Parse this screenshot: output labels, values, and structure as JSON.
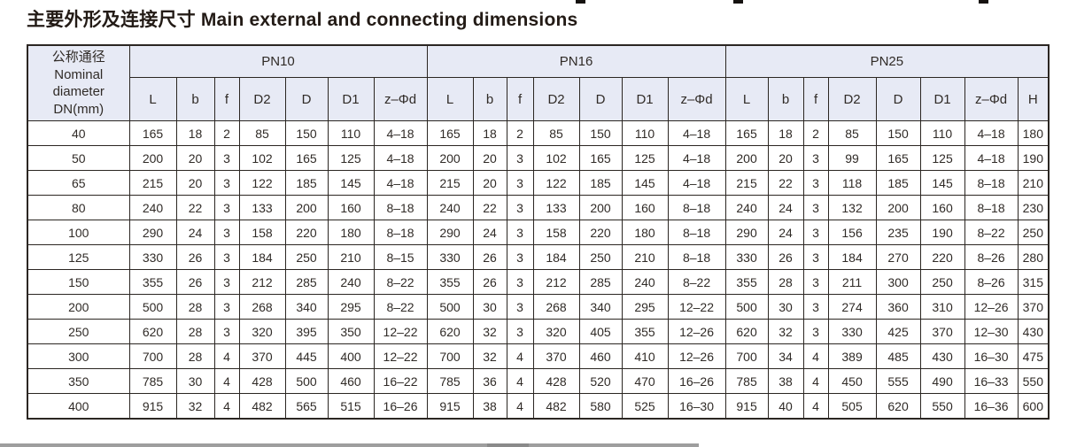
{
  "title": "主要外形及连接尺寸 Main external and connecting dimensions",
  "colors": {
    "header_bg": "#e7eaf5",
    "border": "#2b2622",
    "text": "#302b27",
    "bottom_bar": "#9e9e9e"
  },
  "header": {
    "dn_lines": [
      "公称通径",
      "Nominal",
      "diameter",
      "DN(mm)"
    ],
    "groups": [
      {
        "label": "PN10",
        "columns": [
          "L",
          "b",
          "f",
          "D2",
          "D",
          "D1",
          "z–Φd"
        ]
      },
      {
        "label": "PN16",
        "columns": [
          "L",
          "b",
          "f",
          "D2",
          "D",
          "D1",
          "z–Φd"
        ]
      },
      {
        "label": "PN25",
        "columns": [
          "L",
          "b",
          "f",
          "D2",
          "D",
          "D1",
          "z–Φd",
          "H"
        ]
      }
    ]
  },
  "rows": [
    {
      "dn": "40",
      "pn10": [
        "165",
        "18",
        "2",
        "85",
        "150",
        "110",
        "4–18"
      ],
      "pn16": [
        "165",
        "18",
        "2",
        "85",
        "150",
        "110",
        "4–18"
      ],
      "pn25": [
        "165",
        "18",
        "2",
        "85",
        "150",
        "110",
        "4–18",
        "180"
      ]
    },
    {
      "dn": "50",
      "pn10": [
        "200",
        "20",
        "3",
        "102",
        "165",
        "125",
        "4–18"
      ],
      "pn16": [
        "200",
        "20",
        "3",
        "102",
        "165",
        "125",
        "4–18"
      ],
      "pn25": [
        "200",
        "20",
        "3",
        "99",
        "165",
        "125",
        "4–18",
        "190"
      ]
    },
    {
      "dn": "65",
      "pn10": [
        "215",
        "20",
        "3",
        "122",
        "185",
        "145",
        "4–18"
      ],
      "pn16": [
        "215",
        "20",
        "3",
        "122",
        "185",
        "145",
        "4–18"
      ],
      "pn25": [
        "215",
        "22",
        "3",
        "118",
        "185",
        "145",
        "8–18",
        "210"
      ]
    },
    {
      "dn": "80",
      "pn10": [
        "240",
        "22",
        "3",
        "133",
        "200",
        "160",
        "8–18"
      ],
      "pn16": [
        "240",
        "22",
        "3",
        "133",
        "200",
        "160",
        "8–18"
      ],
      "pn25": [
        "240",
        "24",
        "3",
        "132",
        "200",
        "160",
        "8–18",
        "230"
      ]
    },
    {
      "dn": "100",
      "pn10": [
        "290",
        "24",
        "3",
        "158",
        "220",
        "180",
        "8–18"
      ],
      "pn16": [
        "290",
        "24",
        "3",
        "158",
        "220",
        "180",
        "8–18"
      ],
      "pn25": [
        "290",
        "24",
        "3",
        "156",
        "235",
        "190",
        "8–22",
        "250"
      ]
    },
    {
      "dn": "125",
      "pn10": [
        "330",
        "26",
        "3",
        "184",
        "250",
        "210",
        "8–15"
      ],
      "pn16": [
        "330",
        "26",
        "3",
        "184",
        "250",
        "210",
        "8–18"
      ],
      "pn25": [
        "330",
        "26",
        "3",
        "184",
        "270",
        "220",
        "8–26",
        "280"
      ]
    },
    {
      "dn": "150",
      "pn10": [
        "355",
        "26",
        "3",
        "212",
        "285",
        "240",
        "8–22"
      ],
      "pn16": [
        "355",
        "26",
        "3",
        "212",
        "285",
        "240",
        "8–22"
      ],
      "pn25": [
        "355",
        "28",
        "3",
        "211",
        "300",
        "250",
        "8–26",
        "315"
      ]
    },
    {
      "dn": "200",
      "pn10": [
        "500",
        "28",
        "3",
        "268",
        "340",
        "295",
        "8–22"
      ],
      "pn16": [
        "500",
        "30",
        "3",
        "268",
        "340",
        "295",
        "12–22"
      ],
      "pn25": [
        "500",
        "30",
        "3",
        "274",
        "360",
        "310",
        "12–26",
        "370"
      ]
    },
    {
      "dn": "250",
      "pn10": [
        "620",
        "28",
        "3",
        "320",
        "395",
        "350",
        "12–22"
      ],
      "pn16": [
        "620",
        "32",
        "3",
        "320",
        "405",
        "355",
        "12–26"
      ],
      "pn25": [
        "620",
        "32",
        "3",
        "330",
        "425",
        "370",
        "12–30",
        "430"
      ]
    },
    {
      "dn": "300",
      "pn10": [
        "700",
        "28",
        "4",
        "370",
        "445",
        "400",
        "12–22"
      ],
      "pn16": [
        "700",
        "32",
        "4",
        "370",
        "460",
        "410",
        "12–26"
      ],
      "pn25": [
        "700",
        "34",
        "4",
        "389",
        "485",
        "430",
        "16–30",
        "475"
      ]
    },
    {
      "dn": "350",
      "pn10": [
        "785",
        "30",
        "4",
        "428",
        "500",
        "460",
        "16–22"
      ],
      "pn16": [
        "785",
        "36",
        "4",
        "428",
        "520",
        "470",
        "16–26"
      ],
      "pn25": [
        "785",
        "38",
        "4",
        "450",
        "555",
        "490",
        "16–33",
        "550"
      ]
    },
    {
      "dn": "400",
      "pn10": [
        "915",
        "32",
        "4",
        "482",
        "565",
        "515",
        "16–26"
      ],
      "pn16": [
        "915",
        "38",
        "4",
        "482",
        "580",
        "525",
        "16–30"
      ],
      "pn25": [
        "915",
        "40",
        "4",
        "505",
        "620",
        "550",
        "16–36",
        "600"
      ]
    }
  ]
}
